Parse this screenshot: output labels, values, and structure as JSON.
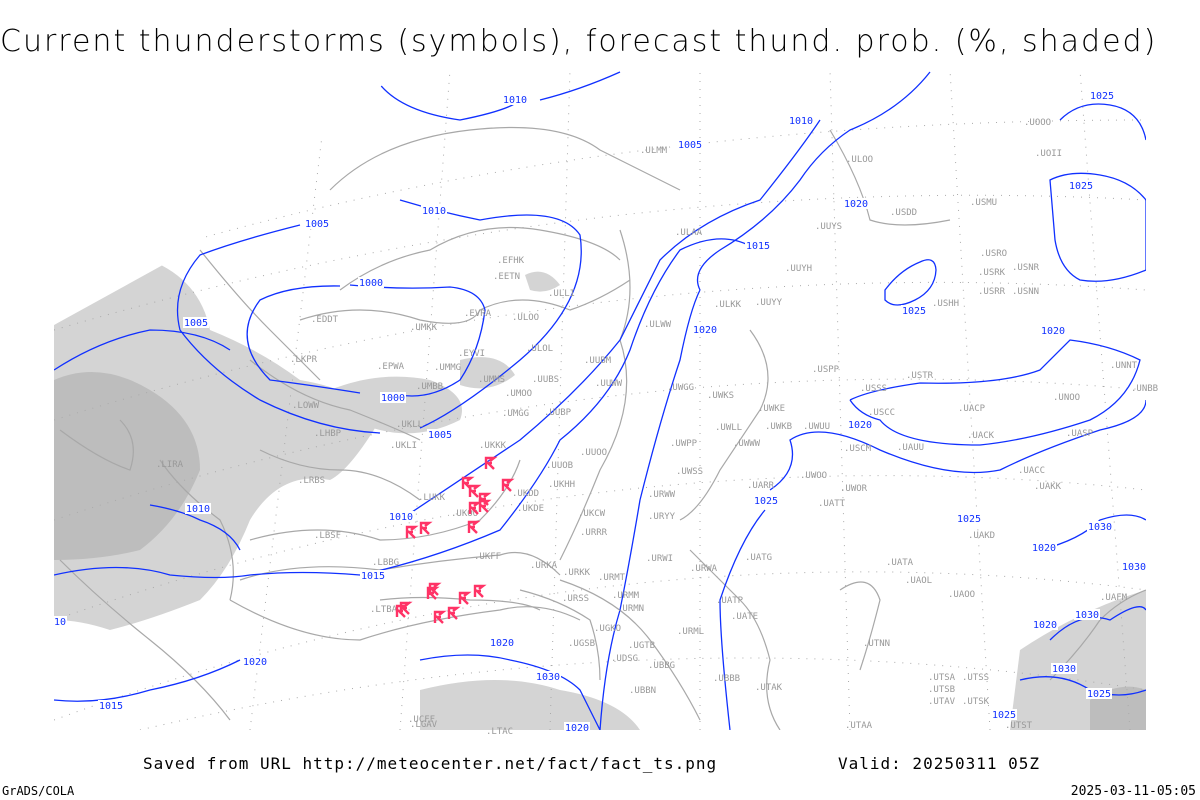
{
  "title": "Current thunderstorms (symbols), forecast thund. prob. (%, shaded)",
  "footer": {
    "saved_from": "Saved from URL http://meteocenter.net/fact/fact_ts.png",
    "valid": "Valid: 20250311 05Z",
    "software": "GrADS/COLA",
    "timestamp": "2025-03-11-05:05"
  },
  "colors": {
    "isobar": "#1030ff",
    "thunderstorm_symbol": "#ff3366",
    "coastline": "#a8a8a8",
    "probability_shading": "#d0d0d0",
    "station_label": "#999999"
  },
  "isobar_labels": [
    "1010",
    "1005",
    "1010",
    "1005",
    "1000",
    "1000",
    "1005",
    "1005",
    "1010",
    "1010",
    "1015",
    "1015",
    "1020",
    "1020",
    "1020",
    "1020",
    "1025",
    "1025",
    "1025",
    "1025",
    "1025",
    "1020",
    "1020",
    "1020",
    "1030",
    "1030",
    "1030",
    "1030",
    "1030",
    "1025",
    "1025",
    "1020",
    "1015",
    "1020",
    "1010",
    "10"
  ],
  "stations": [
    "ULMM",
    "ULOO",
    "UUYS",
    "USDD",
    "USMU",
    "ULAA",
    "EFHK",
    "EETN",
    "ULLI",
    "UUYH",
    "USRO",
    "USRK",
    "USNR",
    "USRR",
    "USNN",
    "USHH",
    "ULKK",
    "UUYY",
    "EDDT",
    "EVRA",
    "ULOO",
    "UMKK",
    "ULOL",
    "EYVI",
    "EPWA",
    "UMMG",
    "UMMS",
    "UMOO",
    "UUBS",
    "UUBM",
    "UUWW",
    "LKPR",
    "UMBB",
    "LOWW",
    "UMGG",
    "UUBP",
    "UKLL",
    "LHBP",
    "UKLI",
    "UKKK",
    "UUOO",
    "UUOB",
    "UKHH",
    "UKDD",
    "UKDE",
    "LUKK",
    "UKOO",
    "LIRA",
    "LRBS",
    "UKCW",
    "URRR",
    "UKFF",
    "URKA",
    "URKK",
    "URMT",
    "URMM",
    "URMN",
    "URSS",
    "UGKO",
    "UGSB",
    "UGTB",
    "UDSG",
    "UBBG",
    "UBBB",
    "UBBN",
    "URML",
    "LBSF",
    "LBBG",
    "LGAV",
    "LTBA",
    "LTAC",
    "ULWW",
    "UWGG",
    "UWKS",
    "UWKE",
    "UWLL",
    "UWKB",
    "UWUU",
    "UWPP",
    "UWWW",
    "USPP",
    "USSS",
    "USTR",
    "USCC",
    "USCM",
    "UAUU",
    "UNOO",
    "UACP",
    "UACK",
    "UASP",
    "UNNT",
    "UNBB",
    "UACC",
    "UAKK",
    "UWOO",
    "UARR",
    "UWOR",
    "UATT",
    "UWSS",
    "URWW",
    "URYY",
    "URWI",
    "URWA",
    "UATG",
    "UATP",
    "UATE",
    "UATA",
    "UAOL",
    "UAOO",
    "UAKD",
    "UAFM",
    "UTNN",
    "UTAK",
    "UTSA",
    "UTSS",
    "UTSB",
    "UTAV",
    "UTSK",
    "UTST",
    "UTAA",
    "UCFF",
    "UOOO",
    "UOII"
  ]
}
